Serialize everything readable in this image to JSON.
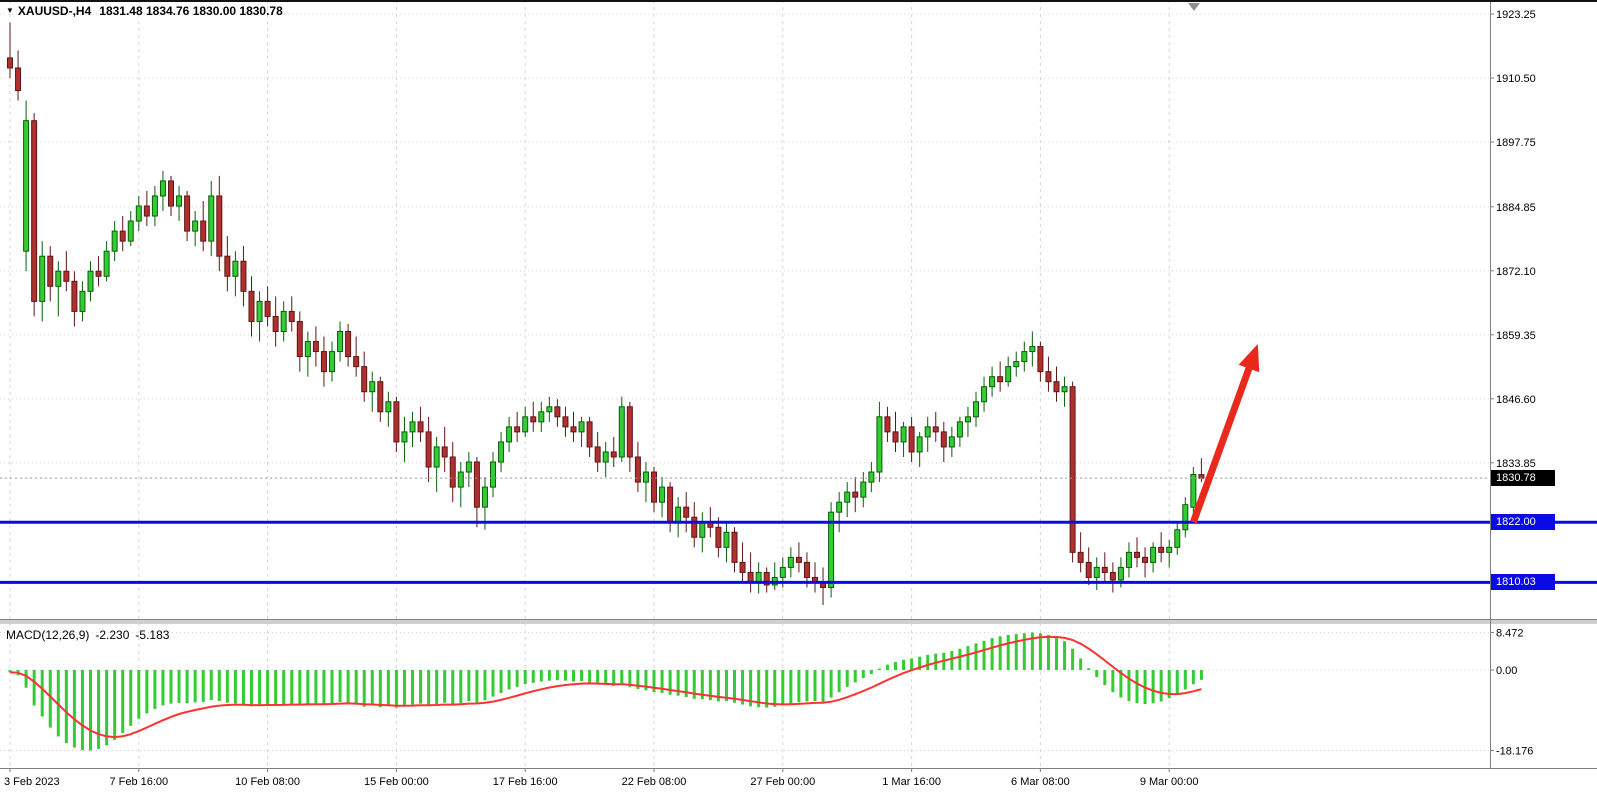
{
  "chart": {
    "title": {
      "symbol_period": "XAUUSD-,H4",
      "ohlc": "1831.48 1834.76 1830.00 1830.78"
    },
    "price_axis": {
      "labels": [
        "1923.25",
        "1910.50",
        "1897.75",
        "1884.85",
        "1872.10",
        "1859.35",
        "1846.60",
        "1833.85"
      ],
      "current_tag": "1830.78",
      "level_tags": [
        "1822.00",
        "1810.03"
      ]
    },
    "time_axis": {
      "labels": [
        "3 Feb 2023",
        "7 Feb 16:00",
        "10 Feb 08:00",
        "15 Feb 00:00",
        "17 Feb 16:00",
        "22 Feb 08:00",
        "27 Feb 00:00",
        "1 Mar 16:00",
        "6 Mar 08:00",
        "9 Mar 00:00"
      ]
    },
    "indicator": {
      "name": "MACD(12,26,9)",
      "main_value": "-2.230",
      "signal_value": "-5.183",
      "axis_labels": [
        "8.472",
        "0.00",
        "-18.176"
      ]
    }
  },
  "colors": {
    "bull": "#33cc33",
    "bull_border": "#0b5d0b",
    "bear": "#b03030",
    "bear_border": "#5f1616",
    "histogram": "#33cc33",
    "signal": "#ff3232",
    "level": "#0a0ae6",
    "arrow": "#e8291c",
    "grid": "#d4d4d4",
    "axis_text": "#000000",
    "current_line": "#999999",
    "current_tag_bg": "#000000",
    "level_tag_bg": "#0a0ae6",
    "border": "#808080",
    "separator": "#cfcfcf"
  },
  "chart_data": {
    "type": "candlestick",
    "symbol": "XAUUSD",
    "timeframe": "H4",
    "current_bar": {
      "open": 1831.48,
      "high": 1834.76,
      "low": 1830.0,
      "close": 1830.78
    },
    "current_price": 1830.78,
    "price_range_visible": {
      "top": 1926.0,
      "bottom": 1804.0
    },
    "horizontal_levels": [
      1822.0,
      1810.03
    ],
    "trend_arrow": {
      "from": {
        "bar": 147,
        "price": 1822.0
      },
      "to": {
        "bar": 155,
        "price": 1857.5
      }
    },
    "candles": [
      [
        1914.5,
        1921.5,
        1910.5,
        1912.5
      ],
      [
        1912.5,
        1916,
        1906,
        1908
      ],
      [
        1876,
        1906,
        1872,
        1902
      ],
      [
        1902,
        1903.5,
        1863,
        1866
      ],
      [
        1866,
        1878,
        1862,
        1875
      ],
      [
        1875,
        1877,
        1866,
        1869
      ],
      [
        1869,
        1874,
        1863,
        1872
      ],
      [
        1872,
        1876,
        1868,
        1870
      ],
      [
        1870,
        1872,
        1861,
        1864
      ],
      [
        1864,
        1870,
        1862,
        1868
      ],
      [
        1868,
        1874,
        1866,
        1872
      ],
      [
        1872,
        1875,
        1869,
        1871
      ],
      [
        1871,
        1878,
        1870,
        1876
      ],
      [
        1876,
        1882,
        1874,
        1880
      ],
      [
        1880,
        1883,
        1876,
        1878
      ],
      [
        1878,
        1884,
        1877,
        1882
      ],
      [
        1882,
        1887,
        1880,
        1885
      ],
      [
        1885,
        1888,
        1881,
        1883
      ],
      [
        1883,
        1889,
        1881,
        1887
      ],
      [
        1887,
        1892,
        1884,
        1890
      ],
      [
        1890,
        1891,
        1883,
        1885
      ],
      [
        1885,
        1889,
        1882,
        1887
      ],
      [
        1887,
        1888,
        1878,
        1880
      ],
      [
        1880,
        1884,
        1877,
        1882
      ],
      [
        1882,
        1886,
        1876,
        1878
      ],
      [
        1878,
        1890,
        1875,
        1887
      ],
      [
        1887,
        1891,
        1872,
        1875
      ],
      [
        1875,
        1879,
        1868,
        1871
      ],
      [
        1871,
        1876,
        1867,
        1874
      ],
      [
        1874,
        1877,
        1865,
        1868
      ],
      [
        1868,
        1871,
        1859,
        1862
      ],
      [
        1862,
        1868,
        1858,
        1866
      ],
      [
        1866,
        1869,
        1861,
        1863
      ],
      [
        1863,
        1867,
        1857,
        1860
      ],
      [
        1860,
        1866,
        1858,
        1864
      ],
      [
        1864,
        1867,
        1860,
        1862
      ],
      [
        1862,
        1864,
        1852,
        1855
      ],
      [
        1855,
        1860,
        1851,
        1858
      ],
      [
        1858,
        1861,
        1853,
        1856
      ],
      [
        1856,
        1859,
        1849,
        1852
      ],
      [
        1852,
        1858,
        1850,
        1856
      ],
      [
        1856,
        1862,
        1854,
        1860
      ],
      [
        1860,
        1861.5,
        1853,
        1855
      ],
      [
        1855,
        1859,
        1851,
        1853
      ],
      [
        1853,
        1856,
        1846,
        1848
      ],
      [
        1848,
        1852,
        1844,
        1850
      ],
      [
        1850,
        1851,
        1842,
        1844
      ],
      [
        1844,
        1848,
        1841,
        1846
      ],
      [
        1846,
        1847,
        1836,
        1838
      ],
      [
        1838,
        1843,
        1834,
        1840
      ],
      [
        1840,
        1844,
        1837,
        1842
      ],
      [
        1842,
        1845,
        1838,
        1840
      ],
      [
        1840,
        1843,
        1830,
        1833
      ],
      [
        1833,
        1839,
        1828,
        1837
      ],
      [
        1837,
        1841,
        1832,
        1835
      ],
      [
        1835,
        1838,
        1826,
        1829
      ],
      [
        1829,
        1834,
        1825,
        1832
      ],
      [
        1832,
        1836,
        1829,
        1834
      ],
      [
        1834,
        1835,
        1821,
        1825
      ],
      [
        1825,
        1831,
        1820.5,
        1829
      ],
      [
        1829,
        1836,
        1827,
        1834
      ],
      [
        1834,
        1840,
        1832,
        1838
      ],
      [
        1838,
        1843,
        1836,
        1841
      ],
      [
        1841,
        1844,
        1838,
        1840
      ],
      [
        1840,
        1845,
        1839,
        1843
      ],
      [
        1843,
        1846,
        1840,
        1842
      ],
      [
        1842,
        1846,
        1840,
        1844
      ],
      [
        1844,
        1847,
        1842,
        1845
      ],
      [
        1845,
        1846.5,
        1841,
        1843
      ],
      [
        1843,
        1845,
        1839,
        1841
      ],
      [
        1841,
        1844,
        1838,
        1840
      ],
      [
        1840,
        1843,
        1837,
        1842
      ],
      [
        1842,
        1843,
        1835,
        1837
      ],
      [
        1837,
        1840,
        1832,
        1834
      ],
      [
        1834,
        1838,
        1831,
        1836
      ],
      [
        1836,
        1839,
        1833,
        1835
      ],
      [
        1835,
        1847,
        1834,
        1845
      ],
      [
        1845,
        1846,
        1832,
        1835
      ],
      [
        1835,
        1838,
        1828,
        1830
      ],
      [
        1830,
        1834,
        1826,
        1832
      ],
      [
        1832,
        1833,
        1824,
        1826
      ],
      [
        1826,
        1831,
        1823,
        1829
      ],
      [
        1829,
        1830,
        1820,
        1822
      ],
      [
        1822,
        1827,
        1819,
        1825
      ],
      [
        1825,
        1828,
        1820,
        1823
      ],
      [
        1823,
        1826,
        1817,
        1819
      ],
      [
        1819,
        1824,
        1816,
        1822
      ],
      [
        1822,
        1825,
        1819,
        1821
      ],
      [
        1821,
        1823,
        1815,
        1817
      ],
      [
        1817,
        1822,
        1814,
        1820
      ],
      [
        1820,
        1821,
        1812,
        1814
      ],
      [
        1814,
        1818,
        1810,
        1812
      ],
      [
        1812,
        1816,
        1808,
        1810
      ],
      [
        1810,
        1814,
        1807.8,
        1812
      ],
      [
        1812,
        1813,
        1808,
        1809.5
      ],
      [
        1809.5,
        1814,
        1808.5,
        1811
      ],
      [
        1811,
        1815,
        1809,
        1813
      ],
      [
        1813,
        1817,
        1811,
        1815
      ],
      [
        1815,
        1818,
        1812,
        1814
      ],
      [
        1814,
        1816,
        1809,
        1811
      ],
      [
        1811,
        1814,
        1808,
        1810
      ],
      [
        1810,
        1813,
        1805.5,
        1809
      ],
      [
        1809,
        1826,
        1807,
        1824
      ],
      [
        1824,
        1828,
        1820,
        1826
      ],
      [
        1826,
        1830,
        1823,
        1828
      ],
      [
        1828,
        1831,
        1824,
        1827
      ],
      [
        1827,
        1832,
        1825,
        1830
      ],
      [
        1830,
        1834,
        1828,
        1832
      ],
      [
        1832,
        1846,
        1830,
        1843
      ],
      [
        1843,
        1845,
        1838,
        1840
      ],
      [
        1840,
        1844,
        1836,
        1838
      ],
      [
        1838,
        1842,
        1835,
        1841
      ],
      [
        1841,
        1843,
        1834,
        1836
      ],
      [
        1836,
        1840,
        1833,
        1839
      ],
      [
        1839,
        1843,
        1836,
        1841
      ],
      [
        1841,
        1844,
        1838,
        1840
      ],
      [
        1840,
        1842,
        1834,
        1837
      ],
      [
        1837,
        1841,
        1835,
        1839
      ],
      [
        1839,
        1843,
        1837,
        1842
      ],
      [
        1842,
        1845,
        1839,
        1843
      ],
      [
        1843,
        1848,
        1841,
        1846
      ],
      [
        1846,
        1851,
        1844,
        1849
      ],
      [
        1849,
        1853,
        1847,
        1851
      ],
      [
        1851,
        1854,
        1848,
        1850
      ],
      [
        1850,
        1855,
        1849,
        1853
      ],
      [
        1853,
        1856,
        1851,
        1854
      ],
      [
        1854,
        1858,
        1852,
        1856
      ],
      [
        1856,
        1860,
        1853,
        1857
      ],
      [
        1857,
        1858,
        1850,
        1852
      ],
      [
        1852,
        1855,
        1848,
        1850
      ],
      [
        1850,
        1853,
        1846,
        1848
      ],
      [
        1848,
        1851,
        1845,
        1849
      ],
      [
        1849,
        1850,
        1814,
        1816
      ],
      [
        1816,
        1820,
        1812,
        1814
      ],
      [
        1814,
        1817,
        1809.5,
        1811
      ],
      [
        1811,
        1815,
        1808.5,
        1813
      ],
      [
        1813,
        1816,
        1810,
        1812
      ],
      [
        1812,
        1814,
        1808,
        1810.5
      ],
      [
        1810.5,
        1815,
        1809,
        1813
      ],
      [
        1813,
        1818,
        1811,
        1816
      ],
      [
        1816,
        1819,
        1813,
        1815
      ],
      [
        1815,
        1817,
        1811,
        1814
      ],
      [
        1814,
        1818,
        1812,
        1817
      ],
      [
        1817,
        1820,
        1814,
        1816
      ],
      [
        1816,
        1818.5,
        1813,
        1817
      ],
      [
        1817,
        1822,
        1815.5,
        1820.5
      ],
      [
        1820.5,
        1827,
        1819,
        1825.5
      ],
      [
        1825,
        1833,
        1823,
        1831.5
      ],
      [
        1831.48,
        1834.76,
        1830,
        1830.78
      ]
    ],
    "macd": {
      "parameters": [
        12,
        26,
        9
      ],
      "macd_current": -2.23,
      "signal_current": -5.183,
      "axis_values": [
        8.472,
        0,
        -18.176
      ],
      "histogram": [
        -0.5,
        -1.2,
        -4.0,
        -8.0,
        -10.5,
        -13.0,
        -15.0,
        -16.5,
        -17.5,
        -18.1,
        -18.176,
        -17.8,
        -17.0,
        -15.8,
        -14.2,
        -12.6,
        -11.0,
        -9.8,
        -8.8,
        -8.0,
        -7.6,
        -7.4,
        -7.5,
        -7.3,
        -7.2,
        -6.8,
        -7.0,
        -7.4,
        -7.6,
        -7.9,
        -8.2,
        -8.0,
        -7.8,
        -7.9,
        -7.7,
        -7.6,
        -7.8,
        -7.6,
        -7.5,
        -7.7,
        -7.5,
        -7.2,
        -7.4,
        -7.8,
        -8.3,
        -8.0,
        -8.4,
        -8.1,
        -8.5,
        -8.2,
        -7.8,
        -7.6,
        -8.0,
        -7.7,
        -7.4,
        -7.8,
        -7.5,
        -7.0,
        -7.4,
        -6.8,
        -6.0,
        -5.2,
        -4.4,
        -3.8,
        -3.2,
        -2.9,
        -2.6,
        -2.4,
        -2.3,
        -2.4,
        -2.6,
        -2.5,
        -2.8,
        -3.2,
        -3.4,
        -3.6,
        -3.3,
        -3.8,
        -4.3,
        -4.6,
        -5.0,
        -5.2,
        -5.6,
        -5.8,
        -6.1,
        -6.5,
        -6.6,
        -6.8,
        -7.1,
        -7.0,
        -7.4,
        -7.8,
        -8.2,
        -8.4,
        -8.5,
        -8.3,
        -8.0,
        -7.6,
        -7.3,
        -7.1,
        -7.0,
        -7.2,
        -6.2,
        -5.0,
        -3.8,
        -2.8,
        -1.8,
        -0.9,
        0.3,
        1.2,
        1.8,
        2.3,
        2.6,
        3.0,
        3.4,
        3.7,
        3.9,
        4.3,
        4.8,
        5.4,
        6.0,
        6.6,
        7.2,
        7.6,
        7.9,
        8.1,
        8.3,
        8.472,
        8.3,
        7.9,
        7.3,
        6.5,
        4.8,
        2.6,
        0.4,
        -1.6,
        -3.4,
        -5.0,
        -6.2,
        -7.0,
        -7.5,
        -7.7,
        -7.5,
        -7.1,
        -6.4,
        -5.5,
        -4.4,
        -3.2,
        -2.23
      ]
    }
  }
}
